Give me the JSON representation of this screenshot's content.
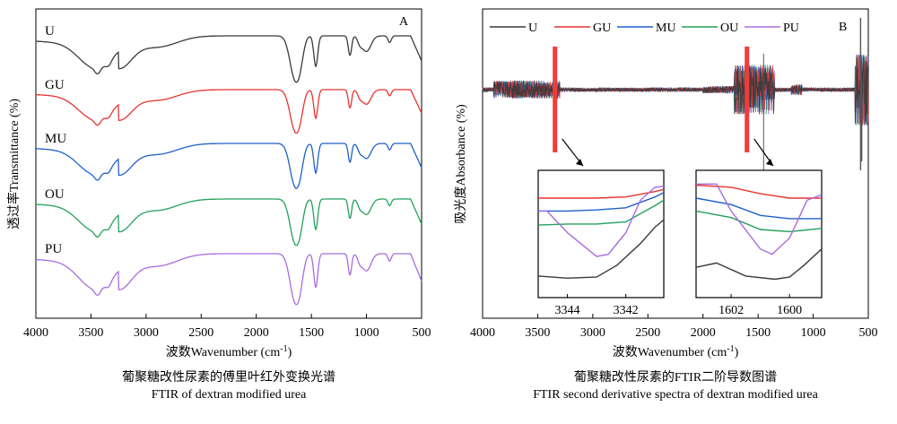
{
  "figure": {
    "caption_left_cn": "葡聚糖改性尿素的傅里叶红外变换光谱",
    "caption_left_en": "FTIR of dextran modified urea",
    "caption_right_cn": "葡聚糖改性尿素的FTIR二阶导数图谱",
    "caption_right_en": "FTIR second derivative spectra of dextran modified urea"
  },
  "colors": {
    "U": "#3a3a3a",
    "GU": "#e8332f",
    "MU": "#1f5fc8",
    "OU": "#23a05a",
    "PU": "#a86be0",
    "highlight": "#f03c3c"
  },
  "chart_data": [
    {
      "type": "line",
      "panel_label": "A",
      "xlabel": "波数Wavenumber (cm⁻¹)",
      "ylabel": "透过率Transmittance (%)",
      "xlim": [
        4000,
        500
      ],
      "xticks": [
        4000,
        3500,
        3000,
        2500,
        2000,
        1500,
        1000,
        500
      ],
      "yticks_shown": false,
      "legend": "inline-left",
      "series": [
        {
          "name": "U",
          "peaks_cm-1": [
            3440,
            3340,
            1680,
            1620,
            1460,
            1150,
            1000,
            790,
            560
          ],
          "x": [
            4000,
            3440,
            3340,
            1680,
            1620,
            1460,
            1150,
            1000,
            790,
            560,
            500
          ]
        },
        {
          "name": "GU",
          "peaks_cm-1": [
            3440,
            3340,
            1680,
            1620,
            1460,
            1150,
            1000,
            790,
            560
          ],
          "x": [
            4000,
            3440,
            3340,
            1680,
            1620,
            1460,
            1150,
            1000,
            790,
            560,
            500
          ]
        },
        {
          "name": "MU",
          "peaks_cm-1": [
            3440,
            3340,
            1680,
            1620,
            1460,
            1150,
            1000,
            790,
            560
          ],
          "x": [
            4000,
            3440,
            3340,
            1680,
            1620,
            1460,
            1150,
            1000,
            790,
            560,
            500
          ]
        },
        {
          "name": "OU",
          "peaks_cm-1": [
            3440,
            3340,
            1680,
            1620,
            1460,
            1150,
            1000,
            790,
            560
          ],
          "x": [
            4000,
            3440,
            3340,
            1680,
            1620,
            1460,
            1150,
            1000,
            790,
            560,
            500
          ]
        },
        {
          "name": "PU",
          "peaks_cm-1": [
            3440,
            3340,
            1680,
            1620,
            1460,
            1150,
            1000,
            790,
            560
          ],
          "x": [
            4000,
            3440,
            3340,
            1680,
            1620,
            1460,
            1150,
            1000,
            790,
            560,
            500
          ]
        }
      ]
    },
    {
      "type": "line",
      "panel_label": "B",
      "xlabel": "波数Wavenumber (cm⁻¹)",
      "ylabel": "吸光度Absorbance (%)",
      "xlim": [
        4000,
        500
      ],
      "xticks": [
        4000,
        3500,
        3000,
        2500,
        2000,
        1500,
        1000,
        500
      ],
      "yticks_shown": false,
      "legend": "top",
      "series_names": [
        "U",
        "GU",
        "MU",
        "OU",
        "PU"
      ],
      "highlight_regions_cm-1": [
        3343,
        1601
      ],
      "insets": [
        {
          "xlim": [
            3345,
            3340.7
          ],
          "xticks": [
            3344,
            3342
          ],
          "series": [
            {
              "name": "U",
              "x": [
                3345,
                3344,
                3343,
                3342.3,
                3341.5,
                3341,
                3340.7
              ],
              "y": [
                0.2,
                0.18,
                0.19,
                0.3,
                0.5,
                0.65,
                0.72
              ]
            },
            {
              "name": "GU",
              "x": [
                3345,
                3344,
                3343,
                3342,
                3341,
                3340.7
              ],
              "y": [
                0.92,
                0.92,
                0.92,
                0.93,
                0.98,
                1.0
              ]
            },
            {
              "name": "MU",
              "x": [
                3345,
                3344,
                3343,
                3342,
                3341,
                3340.7
              ],
              "y": [
                0.8,
                0.8,
                0.81,
                0.83,
                0.93,
                0.97
              ]
            },
            {
              "name": "OU",
              "x": [
                3345,
                3344,
                3343,
                3342,
                3341,
                3340.7
              ],
              "y": [
                0.67,
                0.68,
                0.68,
                0.7,
                0.85,
                0.9
              ]
            },
            {
              "name": "PU",
              "x": [
                3345,
                3344.7,
                3344,
                3343,
                3342.6,
                3342,
                3341.5,
                3341,
                3340.7
              ],
              "y": [
                0.8,
                0.8,
                0.6,
                0.38,
                0.4,
                0.6,
                0.9,
                1.02,
                1.03
              ]
            }
          ]
        },
        {
          "xlim": [
            1603.2,
            1598.9
          ],
          "xticks": [
            1602,
            1600
          ],
          "series": [
            {
              "name": "U",
              "x": [
                1603.2,
                1602.5,
                1601.5,
                1600.5,
                1600,
                1599.5,
                1598.9
              ],
              "y": [
                0.28,
                0.32,
                0.2,
                0.17,
                0.19,
                0.3,
                0.45
              ]
            },
            {
              "name": "GU",
              "x": [
                1603.2,
                1602,
                1601,
                1600,
                1598.9
              ],
              "y": [
                1.04,
                1.02,
                0.96,
                0.92,
                0.92
              ]
            },
            {
              "name": "MU",
              "x": [
                1603.2,
                1602,
                1601,
                1600,
                1598.9
              ],
              "y": [
                0.92,
                0.86,
                0.76,
                0.73,
                0.73
              ]
            },
            {
              "name": "OU",
              "x": [
                1603.2,
                1602,
                1601,
                1600,
                1598.9
              ],
              "y": [
                0.8,
                0.74,
                0.63,
                0.61,
                0.64
              ]
            },
            {
              "name": "PU",
              "x": [
                1603.2,
                1602.5,
                1602,
                1601,
                1600.6,
                1600,
                1599.4,
                1598.9
              ],
              "y": [
                1.05,
                1.05,
                0.8,
                0.45,
                0.4,
                0.55,
                0.9,
                0.95
              ]
            }
          ]
        }
      ]
    }
  ]
}
